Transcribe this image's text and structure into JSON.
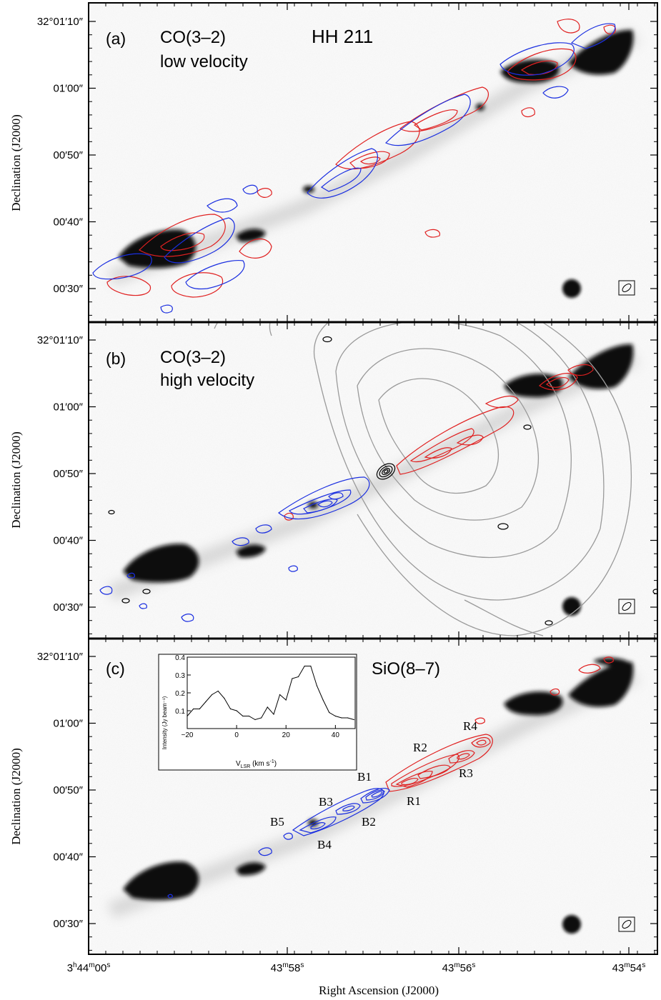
{
  "figure": {
    "xlabel": "Right Ascension (J2000)",
    "ylabel": "Declination (J2000)",
    "x_ticks": [
      {
        "label_main": "3",
        "h": "h",
        "m_val": "44",
        "m": "m",
        "s_val": "00",
        "s": "s",
        "value_sec": 0
      },
      {
        "label_main": "",
        "h": "",
        "m_val": "43",
        "m": "m",
        "s_val": "58",
        "s": "s",
        "value_sec": 2
      },
      {
        "label_main": "",
        "h": "",
        "m_val": "43",
        "m": "m",
        "s_val": "56",
        "s": "s",
        "value_sec": 4
      },
      {
        "label_main": "",
        "h": "",
        "m_val": "43",
        "m": "m",
        "s_val": "54",
        "s": "s",
        "value_sec": 6
      }
    ],
    "y_ticks": [
      "32°01′10″",
      "01′00″",
      "00′50″",
      "00′40″",
      "00′30″"
    ],
    "y_tick_values_arcsec": [
      70,
      60,
      50,
      40,
      30
    ]
  },
  "panels": [
    {
      "id": "a",
      "letter": "(a)",
      "line1": "CO(3–2)",
      "line2": "low velocity",
      "extra": "HH 211"
    },
    {
      "id": "b",
      "letter": "(b)",
      "line1": "CO(3–2)",
      "line2": "high velocity",
      "extra": ""
    },
    {
      "id": "c",
      "letter": "(c)",
      "line1": "SiO(8–7)",
      "line2": "",
      "extra": ""
    }
  ],
  "knot_labels": {
    "blue": [
      "B1",
      "B2",
      "B3",
      "B4",
      "B5"
    ],
    "red": [
      "R1",
      "R2",
      "R3",
      "R4"
    ]
  },
  "colors": {
    "redshifted": "#e02020",
    "blueshifted": "#1a2ee0",
    "dust": "#9a9a9a",
    "continuum": "#000000"
  },
  "inset": {
    "xlabel": "V_LSR (km s⁻¹)",
    "xlabel_main": "V",
    "xlabel_sub": "LSR",
    "xlabel_unit": " (km s",
    "xlabel_sup": "-1",
    "xlabel_end": ")",
    "ylabel": "Intensity (Jy beam⁻¹)",
    "x_ticks": [
      "−20",
      "0",
      "20",
      "40"
    ],
    "y_ticks": [
      "0.4",
      "0.3",
      "0.2",
      "0.1"
    ]
  },
  "chart_data": {
    "type": "line",
    "xlim": [
      -20,
      48
    ],
    "ylim": [
      0,
      0.4
    ],
    "x": [
      -20,
      -17.5,
      -15,
      -12.5,
      -10,
      -7.5,
      -5,
      -2.5,
      0,
      2.5,
      5,
      7.5,
      10,
      12.5,
      15,
      17.5,
      20,
      22.5,
      25,
      27.5,
      30,
      32.5,
      35,
      37.5,
      40,
      42.5,
      45,
      47.5
    ],
    "series": [
      {
        "values": [
          0.07,
          0.11,
          0.11,
          0.15,
          0.19,
          0.21,
          0.17,
          0.11,
          0.1,
          0.07,
          0.07,
          0.05,
          0.06,
          0.12,
          0.08,
          0.19,
          0.16,
          0.28,
          0.29,
          0.35,
          0.35,
          0.24,
          0.16,
          0.09,
          0.07,
          0.06,
          0.06,
          0.05
        ]
      }
    ]
  }
}
